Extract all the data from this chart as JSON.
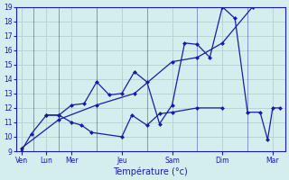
{
  "background_color": "#d4eeed",
  "grid_color": "#aacccc",
  "line_color": "#1a1aaa",
  "xlabel": "Température (°c)",
  "ylim": [
    9,
    19
  ],
  "yticks": [
    9,
    10,
    11,
    12,
    13,
    14,
    15,
    16,
    17,
    18,
    19
  ],
  "xtick_positions": [
    0,
    1,
    2,
    4,
    6,
    8,
    10
  ],
  "xtick_labels": [
    "Ven",
    "Lun",
    "Mer",
    "Jeu",
    "Sam",
    "Dim",
    "Mar"
  ],
  "xdividers": [
    0.5,
    1.5,
    3.0,
    5.0,
    7.0,
    9.0
  ],
  "xlim": [
    -0.2,
    10.5
  ],
  "s1_x": [
    0,
    0.4,
    1.0,
    1.5,
    2.0,
    2.4,
    2.8,
    4.0,
    4.4,
    5.0,
    5.5,
    6.0,
    7.0,
    8.0
  ],
  "s1_y": [
    9.0,
    10.2,
    11.5,
    11.5,
    11.0,
    10.8,
    10.3,
    10.0,
    11.5,
    10.8,
    11.6,
    11.7,
    12.0,
    12.0
  ],
  "s2_x": [
    1.0,
    1.5,
    2.0,
    2.5,
    3.0,
    3.5,
    4.0,
    4.5,
    5.0,
    5.5,
    6.0,
    6.5,
    7.0,
    7.5,
    8.0,
    8.5,
    9.0,
    9.5,
    9.8,
    10.0,
    10.3
  ],
  "s2_y": [
    11.5,
    11.5,
    12.2,
    12.3,
    13.8,
    12.9,
    13.0,
    14.5,
    13.8,
    10.9,
    12.2,
    16.5,
    16.4,
    15.5,
    19.0,
    18.2,
    11.7,
    11.7,
    9.8,
    12.0,
    12.0
  ],
  "s3_x": [
    0,
    1.5,
    3.0,
    4.5,
    6.0,
    7.0,
    8.0,
    9.2
  ],
  "s3_y": [
    9.2,
    11.2,
    12.2,
    13.0,
    15.2,
    15.5,
    16.5,
    19.0
  ]
}
